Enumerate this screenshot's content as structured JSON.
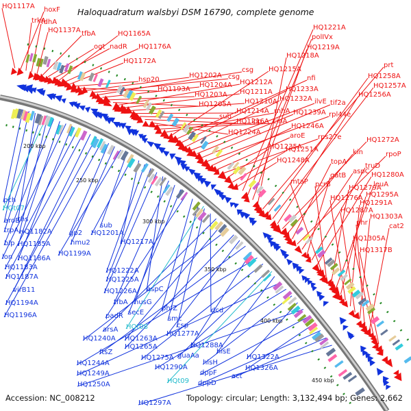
{
  "title": "Haloquadratum walsbyi DSM 16790, complete genome",
  "footer": {
    "accession": "Accession: NC_008212",
    "stats": "Topology: circular; Length: 3,132,494 bp; Genes: 2,662"
  },
  "colors": {
    "forward": "#ee1111",
    "reverse": "#1133dd",
    "trna": "#22bbcc",
    "backbone": "#999999",
    "gc_marks": "#228822",
    "text": "#111111"
  },
  "ticks": [
    "200 kbp",
    "250 kbp",
    "300 kbp",
    "350 kbp",
    "400 kbp",
    "450 kbp"
  ],
  "forward_labels": [
    "HQ1117A",
    "hoxF",
    "trkA",
    "fdhA",
    "HQ1137A",
    "tfbA",
    "ogt",
    "nadR",
    "HQ1165A",
    "HQ1176A",
    "HQ1172A",
    "hsp20",
    "HQ1193A",
    "HQ1202A",
    "csg",
    "csg",
    "HQ1204A",
    "HQ1203A",
    "HQ1205A",
    "HQ1212A",
    "HQ1211A",
    "HQ1210A",
    "HQ1214A",
    "sub",
    "HQ1216A",
    "HQ1224A",
    "ipp",
    "cinA",
    "rnhA",
    "HQ1215A",
    "nfi",
    "HQ1233A",
    "HQ1232A",
    "ilvE",
    "HQ1239A",
    "tif2a",
    "rpl44e",
    "HQ1246A",
    "aroE",
    "rps27e",
    "HQ1235A",
    "HQ1251A",
    "HQ1248A",
    "HQ1221A",
    "polIVx",
    "HQ1219A",
    "HQ1218A",
    "prt",
    "HQ1258A",
    "HQ1257A",
    "HQ1256A",
    "HQ1272A",
    "kin",
    "topA",
    "rpoP",
    "aspC",
    "gatB",
    "truD",
    "HQ1280A",
    "mtaP",
    "pcrB",
    "HQ1279A",
    "leuA",
    "HQ1295A",
    "HQ1276A",
    "HQ1291A",
    "HQ1287A",
    "HQ1303A",
    "phr",
    "cat2",
    "HQ1305A",
    "HQ1317B"
  ],
  "reverse_labels": [
    "pch",
    "aroB",
    "ths",
    "trpA",
    "HQ1182A",
    "blp",
    "HQ1185A",
    "lon",
    "HQ1186A",
    "HQ1183A",
    "HQ1187A",
    "virB11",
    "HQ1194A",
    "HQ1196A",
    "gp2",
    "hmu2",
    "HQ1199A",
    "sub",
    "HQ1201A",
    "HQ1217A",
    "HQ1222A",
    "HQ1225A",
    "HQ1226A",
    "aspC",
    "tfbA",
    "nusG",
    "secE",
    "padR",
    "phfZ",
    "smc",
    "csp",
    "dcd",
    "arsA",
    "HQ1263A",
    "HQ1240A",
    "HQ1265A",
    "HQ1277A",
    "ftsZ",
    "HQ1288A",
    "HQ1244A",
    "HQ1275A",
    "guaAa",
    "hisE",
    "HQ1249A",
    "HQ1290A",
    "hisH",
    "HQ1322A",
    "HQ1250A",
    "dppF",
    "HQ1326A",
    "dppD",
    "act",
    "HQ1297A"
  ],
  "trna_labels": [
    "HQt07",
    "HQt08",
    "HQt09"
  ]
}
